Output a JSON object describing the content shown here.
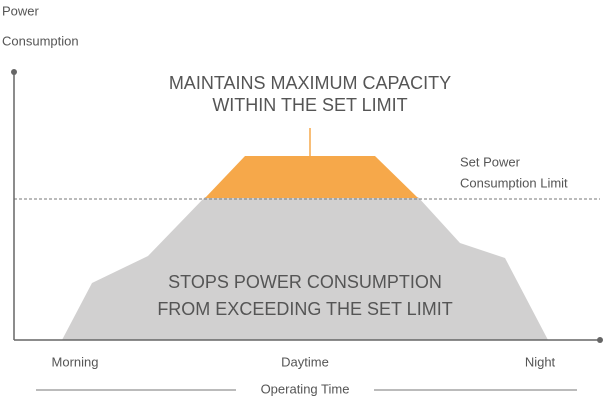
{
  "axis": {
    "y_label": [
      "Power",
      "Consumption"
    ],
    "x_label": "Operating Time",
    "x_ticks": [
      "Morning",
      "Daytime",
      "Night"
    ]
  },
  "annotations": {
    "top": [
      "MAINTAINS MAXIMUM CAPACITY",
      "WITHIN THE SET LIMIT"
    ],
    "limit": [
      "Set Power",
      "Consumption Limit"
    ],
    "inside": [
      "STOPS POWER CONSUMPTION",
      "FROM EXCEEDING THE SET LIMIT"
    ]
  }
}
